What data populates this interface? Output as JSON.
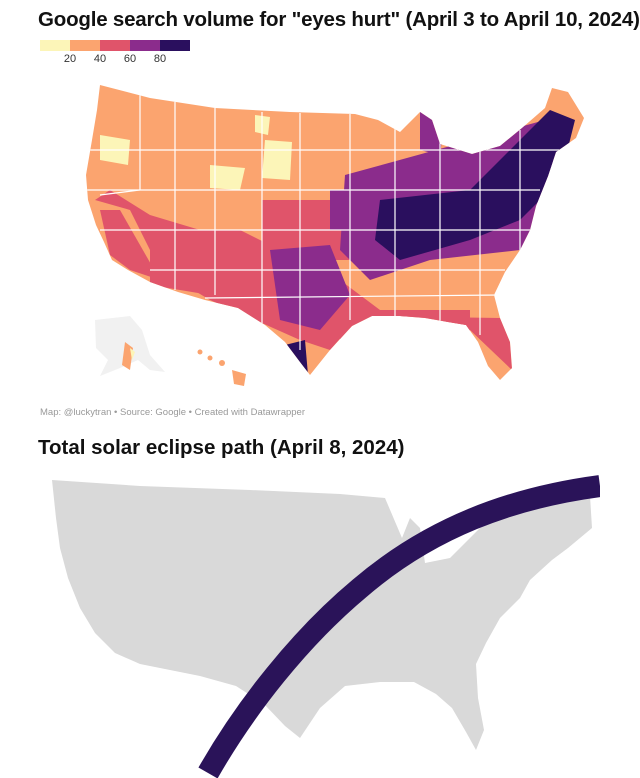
{
  "map1": {
    "title": "Google search volume for \"eyes hurt\"  (April 3 to April 10, 2024)",
    "legend": {
      "ticks": [
        "20",
        "40",
        "60",
        "80"
      ],
      "colors": [
        "#fcf5b8",
        "#fba46f",
        "#e0546a",
        "#8b2c8c",
        "#2a0f5e"
      ]
    },
    "credit": "Map: @luckytran • Source: Google • Created with Datawrapper"
  },
  "map2": {
    "title": "Total solar eclipse path (April 8, 2024)",
    "land_color": "#d9d9d9",
    "path_color": "#2a1359"
  }
}
